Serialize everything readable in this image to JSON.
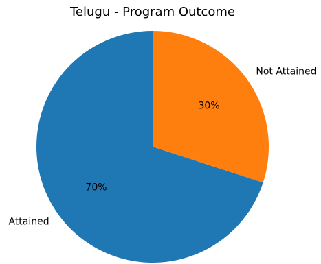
{
  "chart_data": {
    "type": "pie",
    "title": "Telugu - Program Outcome",
    "categories": [
      "Attained",
      "Not Attained"
    ],
    "values": [
      70,
      30
    ],
    "percent_labels": [
      "70%",
      "30%"
    ],
    "colors": [
      "#1f77b4",
      "#ff7f0e"
    ],
    "start_angle": "top",
    "direction": "counterclockwise",
    "legend": "none"
  }
}
